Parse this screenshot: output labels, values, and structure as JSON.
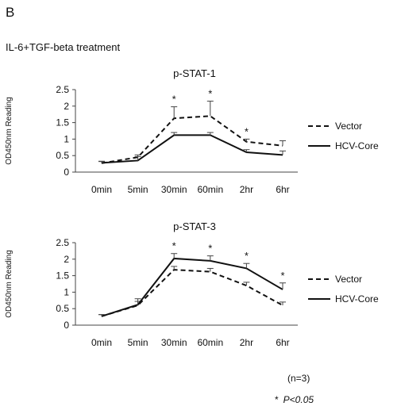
{
  "figure": {
    "panel_letter": "B",
    "treatment": "IL-6+TGF-beta treatment",
    "footer_n": "(n=3)",
    "footer_star": "*",
    "footer_p": "P<0.05"
  },
  "chart_data": [
    {
      "type": "line",
      "title": "p-STAT-1",
      "xlabel": "",
      "ylabel": "OD450nm Reading",
      "categories": [
        "0min",
        "5min",
        "30min",
        "60min",
        "2hr",
        "6hr"
      ],
      "ylim": [
        0,
        2.5
      ],
      "yticks": [
        "0",
        "0.5",
        "1",
        "1.5",
        "2",
        "2.5"
      ],
      "legend_position": "right",
      "grid": false,
      "series": [
        {
          "name": "Vector",
          "style": "dashed",
          "values": [
            0.27,
            0.45,
            1.63,
            1.7,
            0.92,
            0.8
          ],
          "errors": [
            0.05,
            0.07,
            0.35,
            0.45,
            0.08,
            0.15
          ]
        },
        {
          "name": "HCV-Core",
          "style": "solid",
          "values": [
            0.28,
            0.35,
            1.12,
            1.12,
            0.6,
            0.52
          ],
          "errors": [
            0.05,
            0.12,
            0.08,
            0.08,
            0.08,
            0.12
          ]
        }
      ],
      "significance": [
        "",
        "",
        "*",
        "*",
        "*",
        ""
      ]
    },
    {
      "type": "line",
      "title": "p-STAT-3",
      "xlabel": "",
      "ylabel": "OD450nm Reading",
      "categories": [
        "0min",
        "5min",
        "30min",
        "60min",
        "2hr",
        "6hr"
      ],
      "ylim": [
        0,
        2.5
      ],
      "yticks": [
        "0",
        "0.5",
        "1",
        "1.5",
        "2",
        "2.5"
      ],
      "legend_position": "right",
      "grid": false,
      "series": [
        {
          "name": "Vector",
          "style": "dashed",
          "values": [
            0.27,
            0.6,
            1.68,
            1.62,
            1.2,
            0.6
          ],
          "errors": [
            0.05,
            0.12,
            0.1,
            0.1,
            0.1,
            0.1
          ]
        },
        {
          "name": "HCV-Core",
          "style": "solid",
          "values": [
            0.27,
            0.62,
            2.02,
            1.95,
            1.72,
            1.08
          ],
          "errors": [
            0.05,
            0.18,
            0.15,
            0.15,
            0.15,
            0.2
          ]
        }
      ],
      "significance": [
        "",
        "",
        "*",
        "*",
        "*",
        "*"
      ]
    }
  ]
}
